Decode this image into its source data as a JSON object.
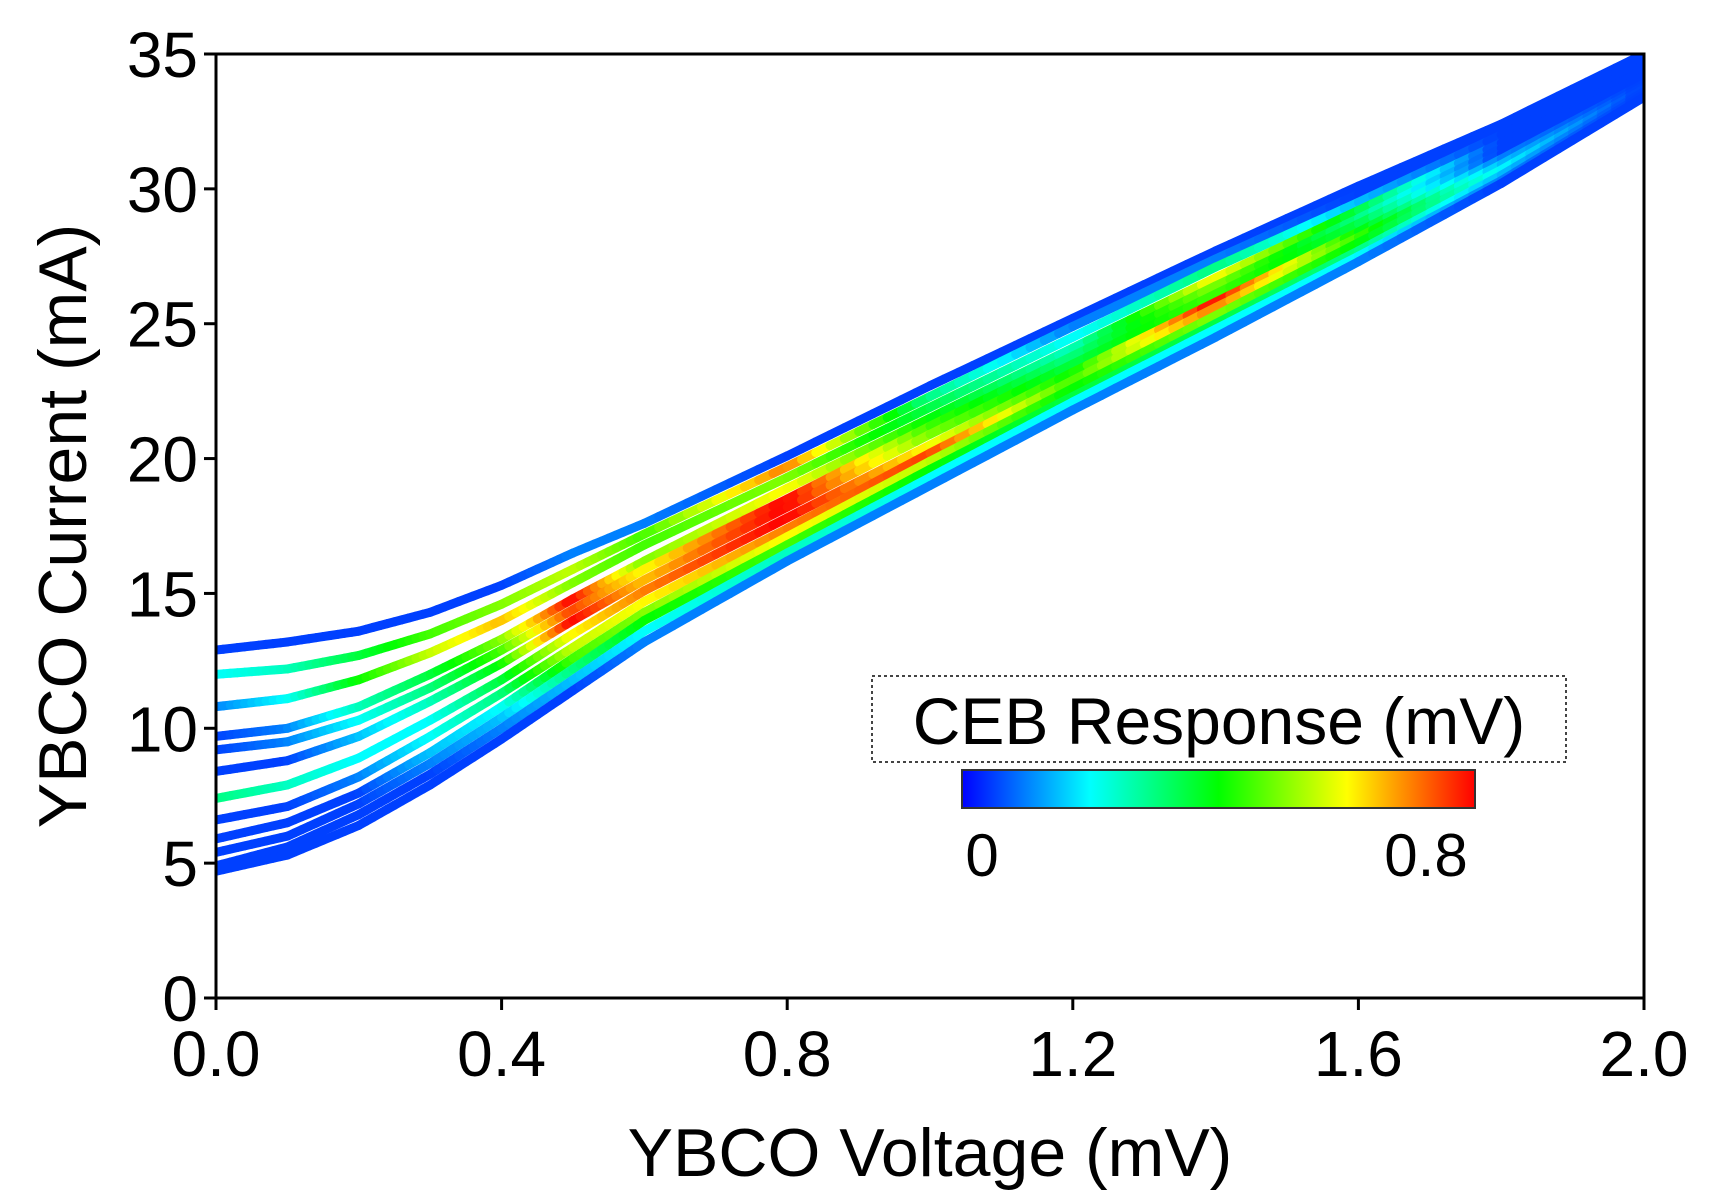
{
  "chart_data": {
    "type": "line",
    "title": "",
    "xlabel": "YBCO Voltage (mV)",
    "ylabel": "YBCO Current (mA)",
    "xlim": [
      0.0,
      2.0
    ],
    "ylim": [
      0,
      35
    ],
    "x_ticks": [
      "0.0",
      "0.4",
      "0.8",
      "1.2",
      "1.6",
      "2.0"
    ],
    "y_ticks": [
      "0",
      "5",
      "10",
      "15",
      "20",
      "25",
      "30",
      "35"
    ],
    "grid": false,
    "colorbar": {
      "title": "CEB Response (mV)",
      "min_label": "0",
      "max_label": "0.8",
      "range": [
        0,
        0.8
      ],
      "placement": "lower-right",
      "colors": [
        "#0000ff",
        "#0080ff",
        "#00ffff",
        "#00ff80",
        "#00ff00",
        "#80ff00",
        "#ffff00",
        "#ff8000",
        "#ff0000"
      ]
    },
    "series": [
      {
        "values": [
          [
            0.0,
            12.9
          ],
          [
            0.1,
            13.2
          ],
          [
            0.2,
            13.6
          ],
          [
            0.3,
            14.3
          ],
          [
            0.4,
            15.3
          ],
          [
            0.5,
            16.5
          ],
          [
            0.6,
            17.6
          ],
          [
            0.8,
            20.1
          ],
          [
            1.0,
            22.7
          ],
          [
            1.2,
            25.2
          ],
          [
            1.4,
            27.7
          ],
          [
            1.6,
            30.1
          ],
          [
            1.8,
            32.4
          ],
          [
            2.0,
            35.0
          ]
        ],
        "response": [
          0.05,
          0.05,
          0.05,
          0.05,
          0.05,
          0.1,
          0.1,
          0.05,
          0.05,
          0.05,
          0.05,
          0.05,
          0.05,
          0.05
        ]
      },
      {
        "values": [
          [
            0.0,
            12.0
          ],
          [
            0.1,
            12.2
          ],
          [
            0.2,
            12.7
          ],
          [
            0.3,
            13.5
          ],
          [
            0.4,
            14.6
          ],
          [
            0.5,
            15.9
          ],
          [
            0.6,
            17.2
          ],
          [
            0.8,
            19.7
          ],
          [
            1.0,
            22.3
          ],
          [
            1.2,
            24.9
          ],
          [
            1.4,
            27.4
          ],
          [
            1.6,
            29.8
          ],
          [
            1.8,
            32.2
          ],
          [
            2.0,
            34.8
          ]
        ],
        "response": [
          0.2,
          0.25,
          0.35,
          0.45,
          0.5,
          0.55,
          0.45,
          0.7,
          0.3,
          0.1,
          0.1,
          0.05,
          0.05,
          0.05
        ]
      },
      {
        "values": [
          [
            0.0,
            10.8
          ],
          [
            0.1,
            11.1
          ],
          [
            0.2,
            11.8
          ],
          [
            0.3,
            12.8
          ],
          [
            0.4,
            14.0
          ],
          [
            0.5,
            15.4
          ],
          [
            0.6,
            16.8
          ],
          [
            0.8,
            19.3
          ],
          [
            1.0,
            21.9
          ],
          [
            1.2,
            24.5
          ],
          [
            1.4,
            27.1
          ],
          [
            1.6,
            29.5
          ],
          [
            1.8,
            32.0
          ],
          [
            2.0,
            34.6
          ]
        ],
        "response": [
          0.1,
          0.2,
          0.4,
          0.55,
          0.65,
          0.5,
          0.45,
          0.5,
          0.35,
          0.2,
          0.3,
          0.15,
          0.05,
          0.05
        ]
      },
      {
        "values": [
          [
            0.0,
            9.7
          ],
          [
            0.1,
            10.0
          ],
          [
            0.2,
            10.8
          ],
          [
            0.3,
            12.0
          ],
          [
            0.4,
            13.3
          ],
          [
            0.5,
            14.8
          ],
          [
            0.6,
            16.2
          ],
          [
            0.8,
            18.9
          ],
          [
            1.0,
            21.5
          ],
          [
            1.2,
            24.1
          ],
          [
            1.4,
            26.7
          ],
          [
            1.6,
            29.2
          ],
          [
            1.8,
            31.7
          ],
          [
            2.0,
            34.4
          ]
        ],
        "response": [
          0.05,
          0.1,
          0.25,
          0.35,
          0.5,
          0.8,
          0.5,
          0.6,
          0.4,
          0.25,
          0.6,
          0.35,
          0.05,
          0.05
        ]
      },
      {
        "values": [
          [
            0.0,
            9.2
          ],
          [
            0.1,
            9.5
          ],
          [
            0.2,
            10.3
          ],
          [
            0.3,
            11.5
          ],
          [
            0.4,
            12.9
          ],
          [
            0.5,
            14.4
          ],
          [
            0.6,
            15.9
          ],
          [
            0.8,
            18.5
          ],
          [
            1.0,
            21.2
          ],
          [
            1.2,
            23.8
          ],
          [
            1.4,
            26.4
          ],
          [
            1.6,
            28.9
          ],
          [
            1.8,
            31.5
          ],
          [
            2.0,
            34.2
          ]
        ],
        "response": [
          0.05,
          0.1,
          0.2,
          0.3,
          0.45,
          0.75,
          0.6,
          0.8,
          0.45,
          0.3,
          0.5,
          0.3,
          0.05,
          0.05
        ]
      },
      {
        "values": [
          [
            0.0,
            8.4
          ],
          [
            0.1,
            8.8
          ],
          [
            0.2,
            9.7
          ],
          [
            0.3,
            11.0
          ],
          [
            0.4,
            12.4
          ],
          [
            0.5,
            14.0
          ],
          [
            0.6,
            15.5
          ],
          [
            0.8,
            18.2
          ],
          [
            1.0,
            20.9
          ],
          [
            1.2,
            23.5
          ],
          [
            1.4,
            26.1
          ],
          [
            1.6,
            28.7
          ],
          [
            1.8,
            31.3
          ],
          [
            2.0,
            34.0
          ]
        ],
        "response": [
          0.05,
          0.05,
          0.15,
          0.25,
          0.4,
          0.8,
          0.65,
          0.8,
          0.5,
          0.35,
          0.45,
          0.35,
          0.05,
          0.05
        ]
      },
      {
        "values": [
          [
            0.0,
            7.4
          ],
          [
            0.1,
            7.9
          ],
          [
            0.2,
            8.9
          ],
          [
            0.3,
            10.3
          ],
          [
            0.4,
            11.8
          ],
          [
            0.5,
            13.5
          ],
          [
            0.6,
            15.1
          ],
          [
            0.8,
            17.8
          ],
          [
            1.0,
            20.5
          ],
          [
            1.2,
            23.2
          ],
          [
            1.4,
            25.8
          ],
          [
            1.6,
            28.4
          ],
          [
            1.8,
            31.1
          ],
          [
            2.0,
            33.9
          ]
        ],
        "response": [
          0.3,
          0.25,
          0.2,
          0.2,
          0.35,
          0.6,
          0.7,
          0.8,
          0.6,
          0.4,
          0.8,
          0.4,
          0.1,
          0.05
        ]
      },
      {
        "values": [
          [
            0.0,
            6.6
          ],
          [
            0.1,
            7.1
          ],
          [
            0.2,
            8.2
          ],
          [
            0.3,
            9.7
          ],
          [
            0.4,
            11.3
          ],
          [
            0.5,
            13.0
          ],
          [
            0.6,
            14.7
          ],
          [
            0.8,
            17.4
          ],
          [
            1.0,
            20.2
          ],
          [
            1.2,
            22.9
          ],
          [
            1.4,
            25.6
          ],
          [
            1.6,
            28.2
          ],
          [
            1.8,
            30.9
          ],
          [
            2.0,
            33.8
          ]
        ],
        "response": [
          0.05,
          0.05,
          0.1,
          0.2,
          0.3,
          0.55,
          0.6,
          0.7,
          0.75,
          0.45,
          0.7,
          0.45,
          0.15,
          0.05
        ]
      },
      {
        "values": [
          [
            0.0,
            5.9
          ],
          [
            0.1,
            6.5
          ],
          [
            0.2,
            7.6
          ],
          [
            0.3,
            9.1
          ],
          [
            0.4,
            10.8
          ],
          [
            0.5,
            12.6
          ],
          [
            0.6,
            14.3
          ],
          [
            0.8,
            17.1
          ],
          [
            1.0,
            19.9
          ],
          [
            1.2,
            22.6
          ],
          [
            1.4,
            25.3
          ],
          [
            1.6,
            28.0
          ],
          [
            1.8,
            30.7
          ],
          [
            2.0,
            33.7
          ]
        ],
        "response": [
          0.05,
          0.05,
          0.05,
          0.15,
          0.2,
          0.45,
          0.5,
          0.6,
          0.55,
          0.4,
          0.5,
          0.4,
          0.2,
          0.05
        ]
      },
      {
        "values": [
          [
            0.0,
            5.4
          ],
          [
            0.1,
            6.0
          ],
          [
            0.2,
            7.2
          ],
          [
            0.3,
            8.7
          ],
          [
            0.4,
            10.4
          ],
          [
            0.5,
            12.2
          ],
          [
            0.6,
            14.0
          ],
          [
            0.8,
            16.8
          ],
          [
            1.0,
            19.6
          ],
          [
            1.2,
            22.3
          ],
          [
            1.4,
            25.0
          ],
          [
            1.6,
            27.7
          ],
          [
            1.8,
            30.5
          ],
          [
            2.0,
            33.6
          ]
        ],
        "response": [
          0.05,
          0.05,
          0.05,
          0.1,
          0.15,
          0.3,
          0.4,
          0.45,
          0.4,
          0.35,
          0.35,
          0.3,
          0.15,
          0.05
        ]
      },
      {
        "values": [
          [
            0.0,
            4.9
          ],
          [
            0.1,
            5.6
          ],
          [
            0.2,
            6.8
          ],
          [
            0.3,
            8.3
          ],
          [
            0.4,
            10.0
          ],
          [
            0.5,
            11.8
          ],
          [
            0.6,
            13.6
          ],
          [
            0.8,
            16.5
          ],
          [
            1.0,
            19.3
          ],
          [
            1.2,
            22.1
          ],
          [
            1.4,
            24.8
          ],
          [
            1.6,
            27.5
          ],
          [
            1.8,
            30.3
          ],
          [
            2.0,
            33.5
          ]
        ],
        "response": [
          0.05,
          0.05,
          0.05,
          0.05,
          0.1,
          0.15,
          0.2,
          0.25,
          0.2,
          0.2,
          0.2,
          0.2,
          0.1,
          0.05
        ]
      },
      {
        "values": [
          [
            0.0,
            4.7
          ],
          [
            0.1,
            5.3
          ],
          [
            0.2,
            6.4
          ],
          [
            0.3,
            7.9
          ],
          [
            0.4,
            9.6
          ],
          [
            0.5,
            11.4
          ],
          [
            0.6,
            13.2
          ],
          [
            0.8,
            16.2
          ],
          [
            1.0,
            19.0
          ],
          [
            1.2,
            21.8
          ],
          [
            1.4,
            24.5
          ],
          [
            1.6,
            27.3
          ],
          [
            1.8,
            30.2
          ],
          [
            2.0,
            33.4
          ]
        ],
        "response": [
          0.05,
          0.05,
          0.05,
          0.05,
          0.05,
          0.05,
          0.1,
          0.1,
          0.1,
          0.1,
          0.1,
          0.1,
          0.05,
          0.05
        ]
      }
    ]
  }
}
